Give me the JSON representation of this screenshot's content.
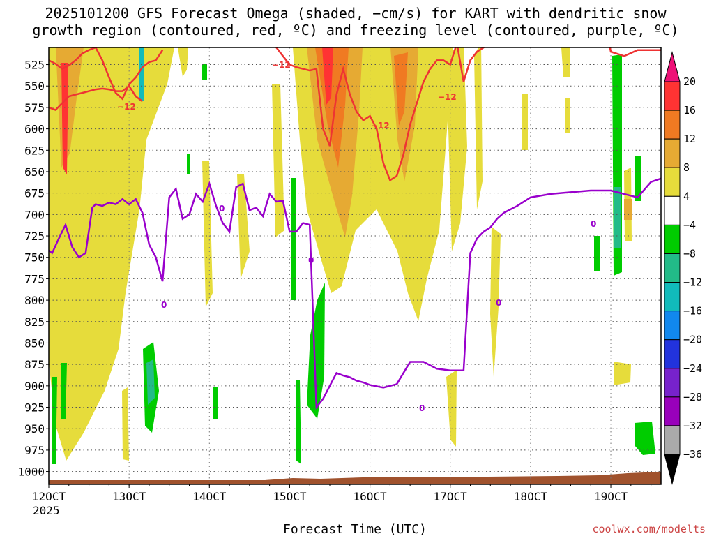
{
  "chart_data": {
    "type": "time-height",
    "title_line1": "2025101200 GFS Forecast Omega (shaded, −cm/s) for KART with dendritic snow",
    "title_line2": "growth region (contoured, red, ºC) and freezing level (contoured, purple, ºC)",
    "xlabel": "Forecast Time (UTC)",
    "x_year_label": "2025",
    "credit": "coolwx.com/modelts",
    "x_ticks": [
      {
        "hour": 0,
        "label": "12OCT"
      },
      {
        "hour": 24,
        "label": "13OCT"
      },
      {
        "hour": 48,
        "label": "14OCT"
      },
      {
        "hour": 72,
        "label": "15OCT"
      },
      {
        "hour": 96,
        "label": "16OCT"
      },
      {
        "hour": 120,
        "label": "17OCT"
      },
      {
        "hour": 144,
        "label": "18OCT"
      },
      {
        "hour": 168,
        "label": "19OCT"
      }
    ],
    "xlim_hours": [
      0,
      183
    ],
    "y_levels_hpa": [
      525,
      550,
      575,
      600,
      625,
      650,
      675,
      700,
      725,
      750,
      775,
      800,
      825,
      850,
      875,
      900,
      925,
      950,
      975,
      1000
    ],
    "ylim_hpa": [
      505,
      1015
    ],
    "colorbar": {
      "labels": [
        "20",
        "16",
        "12",
        "8",
        "4",
        "−4",
        "−8",
        "−12",
        "−16",
        "−20",
        "−24",
        "−28",
        "−32",
        "−36"
      ],
      "colors": [
        "#ff3333",
        "#f07a22",
        "#e6aa33",
        "#e6dc3b",
        "#ffffff",
        "#00cc00",
        "#22bb88",
        "#11bbbb",
        "#1188ee",
        "#2233dd",
        "#7722cc",
        "#9900bb",
        "#aaaaaa"
      ],
      "top_cap_color": "#ee1177",
      "bottom_cap_color": "#000000"
    },
    "dgz_contour_label": "−12",
    "freezing_contour_label": "0",
    "freezing_level_hpa": {
      "hours": [
        0,
        1,
        3,
        5,
        7,
        9,
        11,
        13,
        14,
        16,
        18,
        20,
        22,
        24,
        26,
        28,
        30,
        32,
        34,
        36,
        38,
        40,
        42,
        44,
        46,
        48,
        50,
        52,
        54,
        56,
        58,
        60,
        62,
        64,
        66,
        68,
        70,
        72,
        74,
        76,
        78,
        80,
        82,
        84,
        86,
        88,
        90,
        92,
        94,
        96,
        100,
        104,
        108,
        112,
        116,
        120,
        124,
        126,
        128,
        130,
        132,
        134,
        136,
        140,
        144,
        150,
        156,
        162,
        168,
        172,
        176,
        180,
        183
      ],
      "values": [
        742,
        745,
        728,
        712,
        738,
        750,
        745,
        692,
        688,
        690,
        686,
        688,
        682,
        688,
        682,
        698,
        735,
        750,
        778,
        680,
        670,
        705,
        700,
        676,
        685,
        664,
        690,
        710,
        720,
        668,
        664,
        695,
        692,
        702,
        676,
        685,
        684,
        720,
        720,
        710,
        712,
        925,
        915,
        900,
        885,
        888,
        890,
        894,
        896,
        899,
        902,
        898,
        872,
        872,
        880,
        882,
        882,
        745,
        728,
        720,
        715,
        705,
        698,
        690,
        680,
        676,
        674,
        672,
        672,
        676,
        680,
        662,
        658
      ]
    },
    "dgz_minus12_upper_hpa": {
      "hours": [
        0,
        2,
        4,
        6,
        8,
        10,
        12,
        14,
        16,
        18,
        20,
        22,
        24,
        26,
        28,
        30,
        32,
        34
      ],
      "values": [
        520,
        524,
        530,
        526,
        520,
        512,
        508,
        505,
        520,
        540,
        558,
        565,
        548,
        540,
        528,
        522,
        520,
        508
      ]
    },
    "dgz_minus12_lower_hpa": {
      "hours": [
        0,
        2,
        4,
        6,
        8,
        10,
        12,
        14,
        16,
        18,
        20,
        22,
        24,
        26,
        28
      ],
      "values": [
        575,
        578,
        570,
        562,
        560,
        558,
        556,
        554,
        553,
        554,
        556,
        556,
        550,
        562,
        568
      ]
    },
    "dgz_minus12_mid_hpa": {
      "hours": [
        68,
        70,
        72,
        74,
        76,
        78,
        80,
        82,
        84,
        86,
        88,
        90,
        92,
        94,
        96,
        98,
        100,
        102,
        104,
        106,
        108,
        110,
        112,
        114,
        116,
        118,
        120,
        122,
        124,
        126,
        128,
        130,
        132,
        134,
        136,
        138,
        140,
        142,
        144,
        146,
        148,
        150,
        152,
        154,
        156,
        160,
        164,
        168,
        172,
        176,
        180,
        183
      ],
      "values": [
        505,
        515,
        525,
        528,
        530,
        532,
        530,
        600,
        620,
        560,
        530,
        560,
        580,
        590,
        585,
        600,
        640,
        660,
        655,
        630,
        595,
        570,
        545,
        530,
        520,
        520,
        525,
        500,
        545,
        520,
        510,
        505,
        490,
        460,
        460,
        470,
        430,
        430,
        430,
        430,
        430,
        430,
        430,
        430,
        430,
        430,
        430,
        510,
        515,
        508,
        508,
        508
      ]
    }
  }
}
